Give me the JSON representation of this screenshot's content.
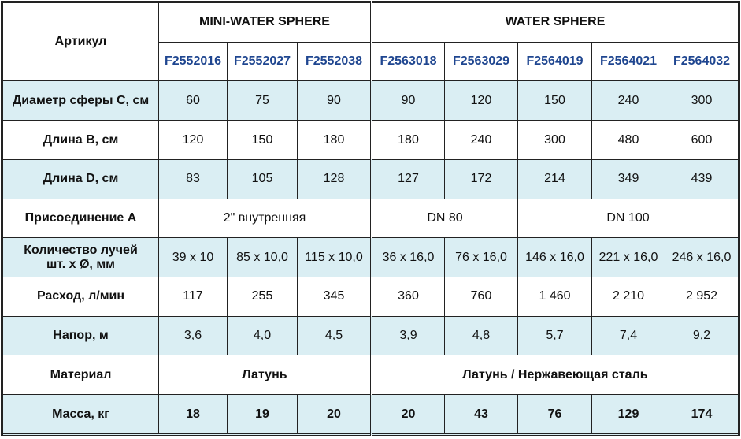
{
  "colors": {
    "row_alt": "#daeef3",
    "code_text": "#1f4690"
  },
  "header": {
    "article_label": "Артикул",
    "groups": [
      {
        "label": "MINI-WATER SPHERE",
        "span": 3
      },
      {
        "label": "WATER SPHERE",
        "span": 5
      }
    ],
    "codes": [
      "F2552016",
      "F2552027",
      "F2552038",
      "F2563018",
      "F2563029",
      "F2564019",
      "F2564021",
      "F2564032"
    ]
  },
  "rows": [
    {
      "label": "Диаметр сферы С, см",
      "blue": true,
      "cells": [
        {
          "t": "60"
        },
        {
          "t": "75"
        },
        {
          "t": "90"
        },
        {
          "t": "90"
        },
        {
          "t": "120"
        },
        {
          "t": "150"
        },
        {
          "t": "240"
        },
        {
          "t": "300"
        }
      ]
    },
    {
      "label": "Длина В, см",
      "blue": false,
      "cells": [
        {
          "t": "120"
        },
        {
          "t": "150"
        },
        {
          "t": "180"
        },
        {
          "t": "180"
        },
        {
          "t": "240"
        },
        {
          "t": "300"
        },
        {
          "t": "480"
        },
        {
          "t": "600"
        }
      ]
    },
    {
      "label": "Длина D, см",
      "blue": true,
      "cells": [
        {
          "t": "83"
        },
        {
          "t": "105"
        },
        {
          "t": "128"
        },
        {
          "t": "127"
        },
        {
          "t": "172"
        },
        {
          "t": "214"
        },
        {
          "t": "349"
        },
        {
          "t": "439"
        }
      ]
    },
    {
      "label": "Присоединение А",
      "blue": false,
      "cells": [
        {
          "t": "2\" внутренняя",
          "span": 3
        },
        {
          "t": "DN 80",
          "span": 2
        },
        {
          "t": "DN 100",
          "span": 3
        }
      ]
    },
    {
      "label": "Количество лучей\nшт. х Ø, мм",
      "blue": true,
      "cells": [
        {
          "t": "39 х 10"
        },
        {
          "t": "85 х 10,0"
        },
        {
          "t": "115 х 10,0"
        },
        {
          "t": "36 х 16,0"
        },
        {
          "t": "76 х 16,0"
        },
        {
          "t": "146 х 16,0"
        },
        {
          "t": "221 х 16,0"
        },
        {
          "t": "246 х 16,0"
        }
      ]
    },
    {
      "label": "Расход, л/мин",
      "blue": false,
      "cells": [
        {
          "t": "117"
        },
        {
          "t": "255"
        },
        {
          "t": "345"
        },
        {
          "t": "360"
        },
        {
          "t": "760"
        },
        {
          "t": "1 460"
        },
        {
          "t": "2 210"
        },
        {
          "t": "2 952"
        }
      ]
    },
    {
      "label": "Напор, м",
      "blue": true,
      "cells": [
        {
          "t": "3,6"
        },
        {
          "t": "4,0"
        },
        {
          "t": "4,5"
        },
        {
          "t": "3,9"
        },
        {
          "t": "4,8"
        },
        {
          "t": "5,7"
        },
        {
          "t": "7,4"
        },
        {
          "t": "9,2"
        }
      ]
    },
    {
      "label": "Материал",
      "blue": false,
      "bold": true,
      "cells": [
        {
          "t": "Латунь",
          "span": 3
        },
        {
          "t": "Латунь / Нержавеющая сталь",
          "span": 5
        }
      ]
    },
    {
      "label": "Масса, кг",
      "blue": true,
      "bold": true,
      "cells": [
        {
          "t": "18"
        },
        {
          "t": "19"
        },
        {
          "t": "20"
        },
        {
          "t": "20"
        },
        {
          "t": "43"
        },
        {
          "t": "76"
        },
        {
          "t": "129"
        },
        {
          "t": "174"
        }
      ]
    }
  ]
}
